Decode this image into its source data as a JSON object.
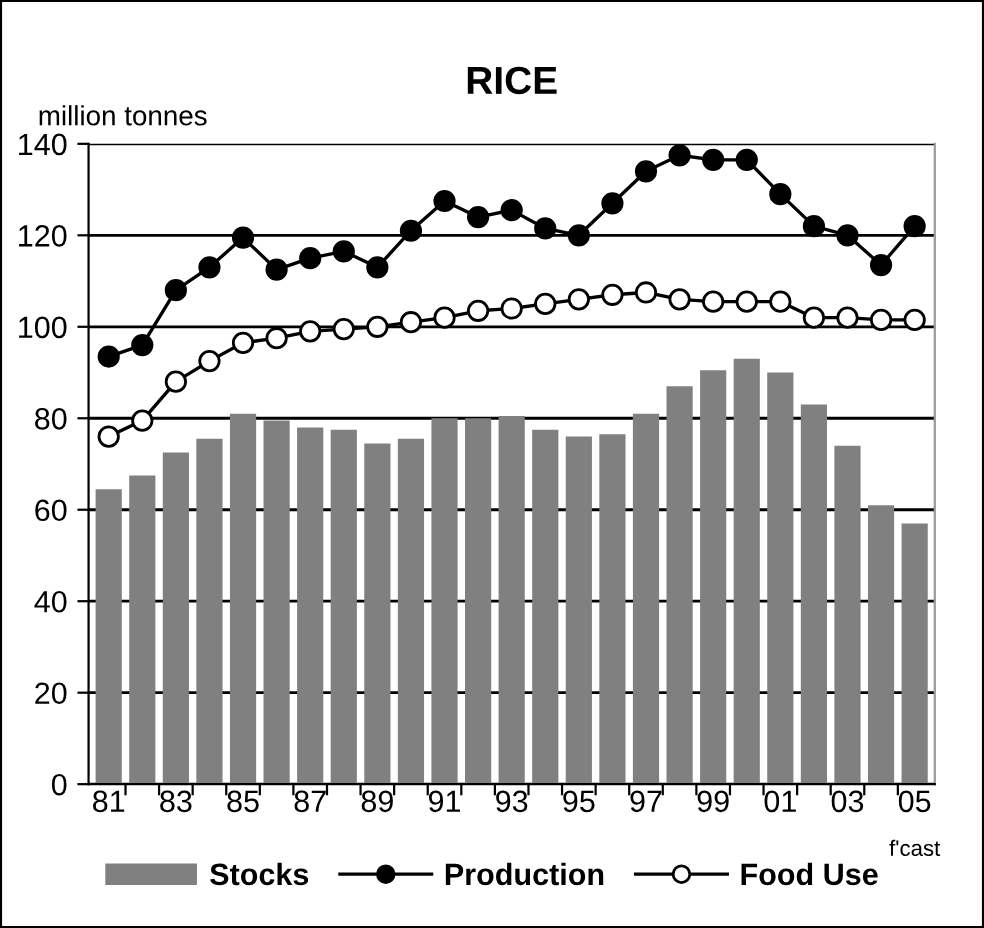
{
  "chart_data": {
    "type": "bar",
    "title": "RICE",
    "ylabel": "million tonnes",
    "categories": [
      "81",
      null,
      "83",
      null,
      "85",
      null,
      "87",
      null,
      "89",
      null,
      "91",
      null,
      "93",
      null,
      "95",
      null,
      "97",
      null,
      "99",
      null,
      "01",
      null,
      "03",
      null,
      "05"
    ],
    "series": [
      {
        "name": "Stocks",
        "color": "#808080",
        "values": [
          64.5,
          67.5,
          72.5,
          75.5,
          81,
          79.5,
          78,
          77.5,
          74.5,
          75.5,
          80,
          80,
          80.5,
          77.5,
          76,
          76.5,
          81,
          87,
          90.5,
          93,
          90,
          83,
          74,
          61,
          57
        ]
      },
      {
        "name": "Production",
        "type": "line",
        "color": "#000000",
        "marker": "circle",
        "values": [
          93.5,
          96,
          108,
          113,
          119.5,
          112.5,
          115,
          116.5,
          113,
          121,
          127.5,
          124,
          125.5,
          121.5,
          120,
          127,
          134,
          137.5,
          136.5,
          136.5,
          129,
          122,
          120,
          113.5,
          122
        ]
      },
      {
        "name": "Food Use",
        "type": "line",
        "color": "#ffffff",
        "marker": "circle",
        "values": [
          76,
          79.5,
          88,
          92.5,
          96.5,
          97.5,
          99,
          99.5,
          100,
          101,
          102,
          103.5,
          104,
          105,
          106,
          107,
          107.5,
          106,
          105.5,
          105.5,
          105.5,
          102,
          102,
          101.5,
          101.5
        ]
      }
    ],
    "annotations": [
      "f'cast"
    ],
    "ylim": [
      0,
      140
    ],
    "yticks": [
      0,
      20,
      40,
      60,
      80,
      100,
      120,
      140
    ],
    "grid": "y",
    "legend": "bottom"
  }
}
